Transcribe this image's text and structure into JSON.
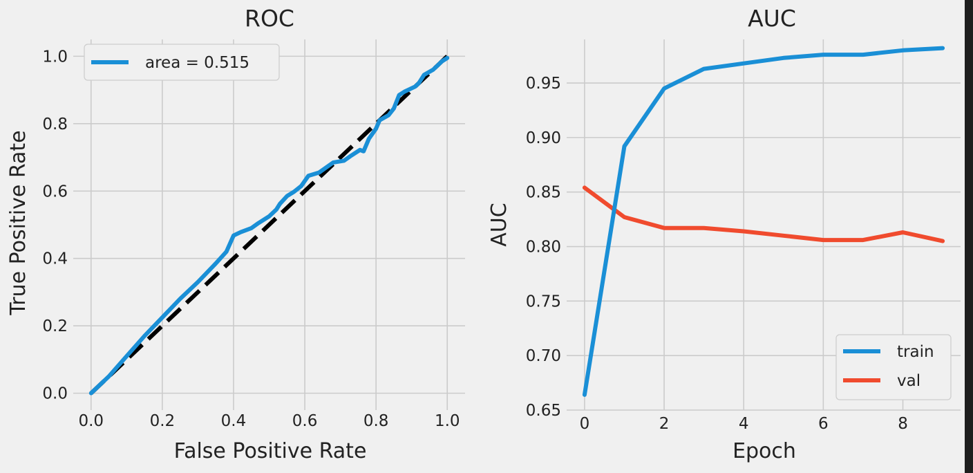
{
  "colors": {
    "background": "#f0f0f0",
    "grid": "#cbcbcb",
    "blue": "#1a8fd6",
    "red": "#f04b2e",
    "diagonal": "#000000"
  },
  "chart_data": [
    {
      "type": "line",
      "title": "ROC",
      "xlabel": "False Positive Rate",
      "ylabel": "True Positive Rate",
      "xlim": [
        -0.05,
        1.05
      ],
      "ylim": [
        -0.05,
        1.05
      ],
      "xticks": [
        "0.0",
        "0.2",
        "0.4",
        "0.6",
        "0.8",
        "1.0"
      ],
      "yticks": [
        "0.0",
        "0.2",
        "0.4",
        "0.6",
        "0.8",
        "1.0"
      ],
      "grid": true,
      "legend": "top-left",
      "series": [
        {
          "name": "area = 0.515",
          "color": "#1a8fd6",
          "points": [
            [
              0.0,
              0.0
            ],
            [
              0.05,
              0.05
            ],
            [
              0.1,
              0.11
            ],
            [
              0.15,
              0.17
            ],
            [
              0.2,
              0.225
            ],
            [
              0.25,
              0.28
            ],
            [
              0.3,
              0.33
            ],
            [
              0.35,
              0.385
            ],
            [
              0.38,
              0.42
            ],
            [
              0.4,
              0.468
            ],
            [
              0.42,
              0.478
            ],
            [
              0.45,
              0.49
            ],
            [
              0.47,
              0.505
            ],
            [
              0.5,
              0.525
            ],
            [
              0.52,
              0.545
            ],
            [
              0.53,
              0.562
            ],
            [
              0.55,
              0.585
            ],
            [
              0.57,
              0.598
            ],
            [
              0.59,
              0.615
            ],
            [
              0.61,
              0.645
            ],
            [
              0.64,
              0.655
            ],
            [
              0.66,
              0.67
            ],
            [
              0.68,
              0.685
            ],
            [
              0.71,
              0.69
            ],
            [
              0.73,
              0.705
            ],
            [
              0.755,
              0.722
            ],
            [
              0.765,
              0.718
            ],
            [
              0.78,
              0.755
            ],
            [
              0.8,
              0.785
            ],
            [
              0.81,
              0.81
            ],
            [
              0.835,
              0.825
            ],
            [
              0.85,
              0.845
            ],
            [
              0.865,
              0.885
            ],
            [
              0.88,
              0.895
            ],
            [
              0.91,
              0.91
            ],
            [
              0.92,
              0.92
            ],
            [
              0.935,
              0.945
            ],
            [
              0.96,
              0.96
            ],
            [
              0.97,
              0.97
            ],
            [
              0.985,
              0.985
            ],
            [
              1.0,
              0.995
            ]
          ]
        }
      ],
      "reference_line": {
        "style": "dashed",
        "color": "#000000",
        "points": [
          [
            0,
            0
          ],
          [
            1,
            1
          ]
        ]
      }
    },
    {
      "type": "line",
      "title": "AUC",
      "xlabel": "Epoch",
      "ylabel": "AUC",
      "xlim": [
        -0.45,
        9.45
      ],
      "ylim": [
        0.65,
        0.99
      ],
      "xticks": [
        "0",
        "2",
        "4",
        "6",
        "8"
      ],
      "yticks": [
        "0.65",
        "0.70",
        "0.75",
        "0.80",
        "0.85",
        "0.90",
        "0.95"
      ],
      "grid": true,
      "legend": "bottom-right",
      "x": [
        0,
        1,
        2,
        3,
        4,
        5,
        6,
        7,
        8,
        9
      ],
      "series": [
        {
          "name": "train",
          "color": "#1a8fd6",
          "values": [
            0.664,
            0.892,
            0.945,
            0.963,
            0.968,
            0.973,
            0.976,
            0.976,
            0.98,
            0.982
          ]
        },
        {
          "name": "val",
          "color": "#f04b2e",
          "values": [
            0.854,
            0.827,
            0.817,
            0.817,
            0.814,
            0.81,
            0.806,
            0.806,
            0.813,
            0.805
          ]
        }
      ]
    }
  ]
}
